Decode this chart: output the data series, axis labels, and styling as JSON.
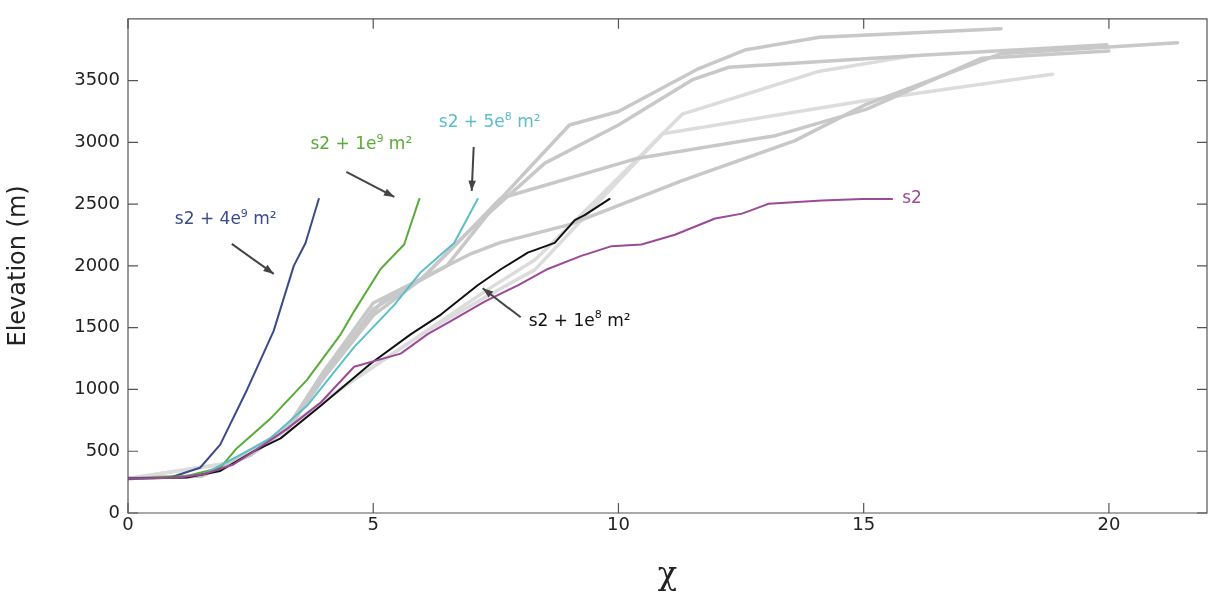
{
  "chart_data": {
    "type": "line",
    "xlabel": "χ",
    "ylabel": "Elevation (m)",
    "xlim": [
      0,
      22
    ],
    "xticks": [
      0,
      5,
      10,
      15,
      20
    ],
    "ylim": [
      0,
      4000
    ],
    "yticks": [
      0,
      500,
      1000,
      1500,
      2000,
      2500,
      3000,
      3500
    ],
    "grid": false,
    "legend": false,
    "marker": "none",
    "line_style": "solid",
    "series": [
      {
        "name": "s2",
        "color": "#9b4a96",
        "x": [
          0,
          1.0,
          1.54,
          2.15,
          2.56,
          3.25,
          3.93,
          4.61,
          5.56,
          6.11,
          6.58,
          7.27,
          7.95,
          8.56,
          9.24,
          9.86,
          10.47,
          11.15,
          11.97,
          12.52,
          13.06,
          14.15,
          14.97,
          15.58
        ],
        "values": [
          280,
          285,
          314,
          393,
          498,
          683,
          894,
          1184,
          1290,
          1448,
          1553,
          1711,
          1843,
          1975,
          2081,
          2160,
          2173,
          2252,
          2384,
          2423,
          2503,
          2529,
          2542,
          2542
        ]
      },
      {
        "name": "s2 + 1e$^{8}$ m²",
        "color": "#111111",
        "x": [
          0,
          1.2,
          1.88,
          2.56,
          3.11,
          3.93,
          4.95,
          5.77,
          6.38,
          7.13,
          7.61,
          8.15,
          8.7,
          9.11,
          9.31,
          9.82
        ],
        "values": [
          280,
          287,
          340,
          498,
          604,
          868,
          1210,
          1448,
          1606,
          1843,
          1975,
          2107,
          2186,
          2371,
          2411,
          2542
        ]
      },
      {
        "name": "s2 + 5e$^{8}$ m²",
        "color": "#5bbfc8",
        "x": [
          0,
          1.0,
          1.54,
          2.36,
          2.9,
          3.65,
          4.61,
          5.43,
          5.97,
          6.65,
          7.13
        ],
        "values": [
          280,
          285,
          314,
          485,
          604,
          868,
          1343,
          1685,
          1949,
          2186,
          2542
        ]
      },
      {
        "name": "s2 + 1e$^{9}$ m²",
        "color": "#5aab3a",
        "x": [
          0,
          1.2,
          1.88,
          2.22,
          2.9,
          3.65,
          4.34,
          4.61,
          5.15,
          5.63,
          5.94
        ],
        "values": [
          280,
          300,
          366,
          525,
          762,
          1078,
          1448,
          1632,
          1975,
          2173,
          2542
        ]
      },
      {
        "name": "s2 + 4e$^{9}$ m²",
        "color": "#3b4a8c",
        "x": [
          0,
          0.86,
          1.47,
          1.88,
          2.43,
          2.97,
          3.38,
          3.62,
          3.89
        ],
        "values": [
          280,
          287,
          366,
          553,
          1000,
          1474,
          2000,
          2186,
          2542
        ]
      },
      {
        "color": "#c8c8c8",
        "x": [
          0,
          1.5,
          2.5,
          3.3,
          4.0,
          5.2,
          6.5,
          7.5,
          8.2,
          9.0,
          10.0,
          11.6,
          12.6,
          14.1,
          17.8
        ],
        "values": [
          280,
          300,
          480,
          720,
          1150,
          1720,
          2000,
          2500,
          2800,
          3140,
          3250,
          3590,
          3750,
          3850,
          3920
        ]
      },
      {
        "color": "#c8c8c8",
        "x": [
          0,
          1.5,
          2.5,
          3.3,
          4.0,
          5.0,
          6.0,
          7.0,
          8.5,
          10.0,
          11.5,
          12.25,
          16.0,
          19.96
        ],
        "values": [
          280,
          300,
          470,
          700,
          1100,
          1650,
          1900,
          2300,
          2832,
          3141,
          3505,
          3608,
          3700,
          3790
        ]
      },
      {
        "color": "#c8c8c8",
        "x": [
          0,
          1.5,
          2.5,
          3.3,
          4.0,
          5.0,
          6.0,
          7.0,
          7.6,
          9.0,
          11.3,
          13.6,
          15.05,
          17.8,
          21.4
        ],
        "values": [
          280,
          300,
          470,
          720,
          1150,
          1700,
          1900,
          2100,
          2190,
          2334,
          2690,
          3014,
          3307,
          3718,
          3806
        ]
      },
      {
        "color": "#c8c8c8",
        "x": [
          0,
          1.5,
          2.5,
          3.3,
          4.0,
          5.0,
          6.0,
          7.0,
          7.6,
          10.4,
          13.2,
          15.05,
          17.4,
          20.0
        ],
        "values": [
          280,
          300,
          470,
          700,
          1100,
          1600,
          1900,
          2300,
          2547,
          2872,
          3054,
          3267,
          3680,
          3740
        ]
      },
      {
        "color": "#dcdcdc",
        "x": [
          0,
          2.0,
          3.0,
          4.5,
          6.0,
          7.3,
          8.3,
          9.5,
          11.3,
          14.1,
          16.0
        ],
        "values": [
          280,
          400,
          620,
          1050,
          1450,
          1800,
          2050,
          2515,
          3228,
          3576,
          3700
        ]
      },
      {
        "color": "#dcdcdc",
        "x": [
          0,
          2.0,
          3.0,
          4.5,
          6.0,
          7.3,
          8.3,
          10.9,
          15.05,
          18.85
        ],
        "values": [
          280,
          400,
          620,
          1050,
          1450,
          1750,
          1970,
          3070,
          3338,
          3552
        ]
      }
    ]
  }
}
